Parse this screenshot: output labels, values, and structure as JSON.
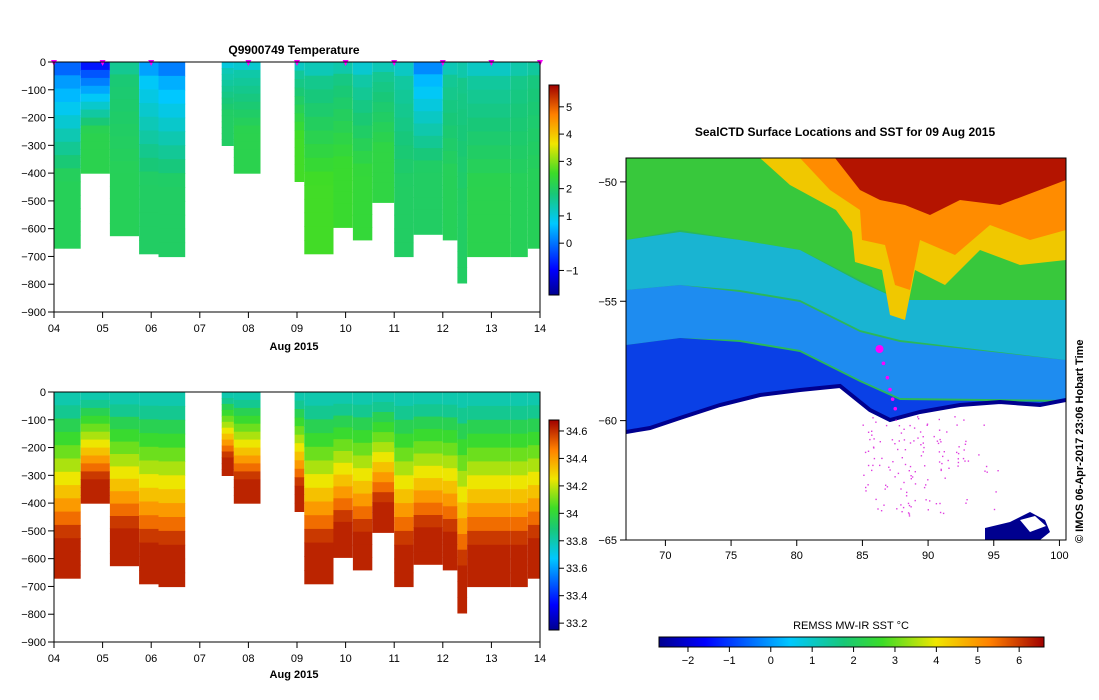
{
  "chart_data": [
    {
      "type": "heatmap",
      "title": "Q9900749  Temperature",
      "xlabel": "Aug 2015",
      "x_ticks": [
        "04",
        "05",
        "06",
        "07",
        "08",
        "09",
        "10",
        "11",
        "12",
        "13",
        "14"
      ],
      "x_range_days": [
        4,
        14
      ],
      "y_ticks": [
        "0",
        "−100",
        "−200",
        "−300",
        "−400",
        "−500",
        "−600",
        "−700",
        "−800",
        "−900"
      ],
      "ylim": [
        -900,
        0
      ],
      "colorbar": {
        "ticks": [
          "−1",
          "0",
          "1",
          "2",
          "3",
          "4",
          "5"
        ],
        "range": [
          -1.9,
          5.8
        ],
        "palette": "jet"
      },
      "columns": [
        {
          "day": 4.0,
          "width": 0.55,
          "depth": 670,
          "top": 0.1,
          "bottom": 2.1
        },
        {
          "day": 4.55,
          "width": 0.6,
          "depth": 400,
          "top": -0.6,
          "bottom": 2.2
        },
        {
          "day": 5.15,
          "width": 0.6,
          "depth": 625,
          "top": 1.8,
          "bottom": 2.1
        },
        {
          "day": 5.75,
          "width": 0.4,
          "depth": 690,
          "top": 0.6,
          "bottom": 2.0
        },
        {
          "day": 6.15,
          "width": 0.55,
          "depth": 700,
          "top": 0.3,
          "bottom": 2.0
        },
        {
          "day": 7.45,
          "width": 0.25,
          "depth": 300,
          "top": 1.2,
          "bottom": 2.0
        },
        {
          "day": 7.7,
          "width": 0.55,
          "depth": 400,
          "top": 1.3,
          "bottom": 2.2
        },
        {
          "day": 8.95,
          "width": 0.2,
          "depth": 430,
          "top": 1.4,
          "bottom": 2.6
        },
        {
          "day": 9.15,
          "width": 0.6,
          "depth": 690,
          "top": 1.5,
          "bottom": 2.6
        },
        {
          "day": 9.75,
          "width": 0.4,
          "depth": 595,
          "top": 1.6,
          "bottom": 2.5
        },
        {
          "day": 10.15,
          "width": 0.4,
          "depth": 640,
          "top": 1.3,
          "bottom": 2.4
        },
        {
          "day": 10.55,
          "width": 0.45,
          "depth": 505,
          "top": 1.5,
          "bottom": 2.3
        },
        {
          "day": 11.0,
          "width": 0.4,
          "depth": 700,
          "top": 1.4,
          "bottom": 2.0
        },
        {
          "day": 11.4,
          "width": 0.6,
          "depth": 620,
          "top": 0.4,
          "bottom": 2.0
        },
        {
          "day": 12.0,
          "width": 0.3,
          "depth": 640,
          "top": 1.5,
          "bottom": 2.1
        },
        {
          "day": 12.3,
          "width": 0.2,
          "depth": 795,
          "top": 1.6,
          "bottom": 2.0
        },
        {
          "day": 12.5,
          "width": 0.9,
          "depth": 700,
          "top": 1.4,
          "bottom": 2.2
        },
        {
          "day": 13.4,
          "width": 0.35,
          "depth": 700,
          "top": 1.6,
          "bottom": 2.1
        },
        {
          "day": 13.75,
          "width": 0.25,
          "depth": 670,
          "top": 1.7,
          "bottom": 2.1
        }
      ],
      "profile_markers_days": [
        4.0,
        5.0,
        6.0,
        8.0,
        9.0,
        10.0,
        11.0,
        12.0,
        13.0,
        14.0
      ]
    },
    {
      "type": "heatmap",
      "xlabel": "Aug 2015",
      "x_ticks": [
        "04",
        "05",
        "06",
        "07",
        "08",
        "09",
        "10",
        "11",
        "12",
        "13",
        "14"
      ],
      "x_range_days": [
        4,
        14
      ],
      "y_ticks": [
        "0",
        "−100",
        "−200",
        "−300",
        "−400",
        "−500",
        "−600",
        "−700",
        "−800",
        "−900"
      ],
      "ylim": [
        -900,
        0
      ],
      "colorbar": {
        "ticks": [
          "33.2",
          "33.4",
          "33.6",
          "33.8",
          "34",
          "34.2",
          "34.4",
          "34.6"
        ],
        "range": [
          33.15,
          34.68
        ],
        "palette": "jet"
      }
    },
    {
      "type": "heatmap",
      "title": "SealCTD Surface Locations and SST for 09 Aug 2015",
      "x_ticks": [
        "70",
        "75",
        "80",
        "85",
        "90",
        "95",
        "100"
      ],
      "xlim": [
        67,
        100.5
      ],
      "y_ticks": [
        "−50",
        "−55",
        "−60",
        "−65"
      ],
      "ylim": [
        -65,
        -49
      ],
      "colorbar": {
        "label": "REMSS MW-IR SST °C",
        "ticks": [
          "−2",
          "−1",
          "0",
          "1",
          "2",
          "3",
          "4",
          "5",
          "6"
        ],
        "range": [
          -2.7,
          6.6
        ],
        "palette": "jet"
      },
      "track_points": [
        {
          "lon": 86.3,
          "lat": -57.0
        },
        {
          "lon": 86.6,
          "lat": -57.6
        },
        {
          "lon": 86.9,
          "lat": -58.2
        },
        {
          "lon": 87.1,
          "lat": -58.7
        },
        {
          "lon": 87.3,
          "lat": -59.1
        },
        {
          "lon": 87.5,
          "lat": -59.5
        }
      ],
      "current_location": {
        "lon": 86.3,
        "lat": -57.0
      },
      "side_label": "©  IMOS 06-Apr-2017 23:06 Hobart Time"
    }
  ]
}
